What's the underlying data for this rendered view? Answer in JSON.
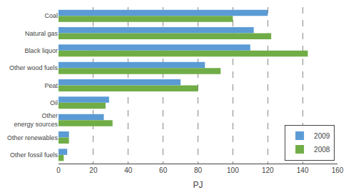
{
  "chart_data": {
    "type": "bar",
    "orientation": "horizontal",
    "categories": [
      "Coal",
      "Natural gas",
      "Black liquor",
      "Other wood fuels",
      "Peat",
      "Oil",
      "Other\nenergy sources",
      "Other renewables",
      "Other fossil fuels"
    ],
    "series": [
      {
        "name": "2009",
        "color": "#5b9bd5",
        "values": [
          120,
          112,
          110,
          84,
          70,
          29,
          26,
          6,
          5
        ]
      },
      {
        "name": "2008",
        "color": "#70ad47",
        "values": [
          100,
          122,
          143,
          93,
          80,
          27,
          31,
          6,
          3
        ]
      }
    ],
    "xlabel": "PJ",
    "xlim": [
      0,
      160
    ],
    "xticks": [
      0,
      20,
      40,
      60,
      80,
      100,
      120,
      140,
      160
    ],
    "grid": true,
    "legend": "lower right"
  }
}
